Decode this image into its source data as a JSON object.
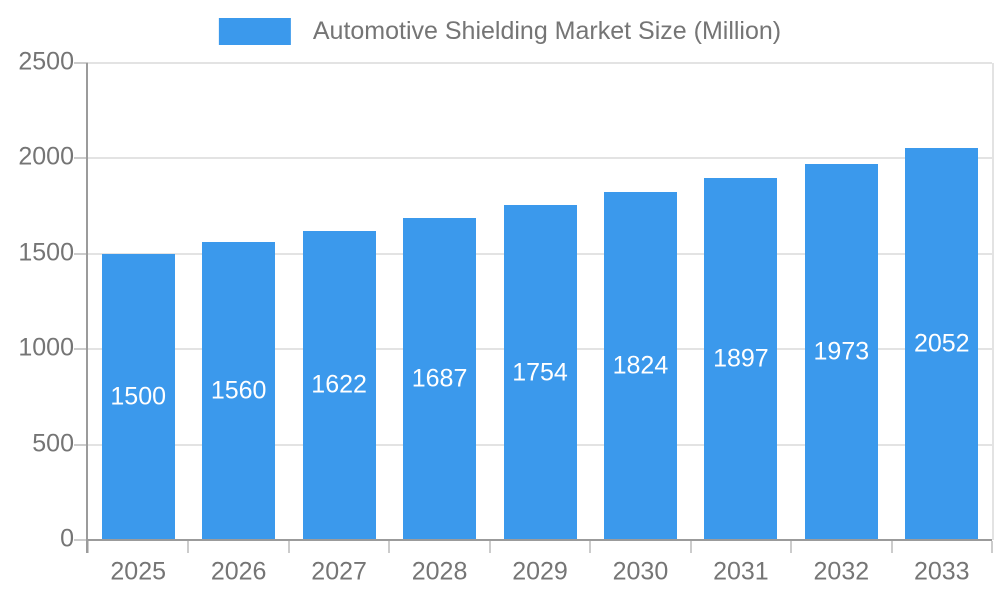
{
  "chart_data": {
    "type": "bar",
    "title": "Automotive Shielding Market Size (Million)",
    "categories": [
      "2025",
      "2026",
      "2027",
      "2028",
      "2029",
      "2030",
      "2031",
      "2032",
      "2033"
    ],
    "values": [
      1500,
      1560,
      1622,
      1687,
      1754,
      1824,
      1897,
      1973,
      2052
    ],
    "series": [
      {
        "name": "Automotive Shielding Market Size (Million)",
        "values": [
          1500,
          1560,
          1622,
          1687,
          1754,
          1824,
          1897,
          1973,
          2052
        ]
      }
    ],
    "xlabel": "",
    "ylabel": "",
    "ylim": [
      0,
      2500
    ],
    "yticks": [
      0,
      500,
      1000,
      1500,
      2000,
      2500
    ],
    "grid": true,
    "legend_position": "top",
    "bar_labels": true
  },
  "colors": {
    "bar": "#3b99ec",
    "text": "#757575",
    "grid": "#e3e3e3",
    "axis": "#9b9b9b",
    "tick": "#cccccc",
    "bar_label": "#ffffff",
    "background": "#ffffff"
  }
}
